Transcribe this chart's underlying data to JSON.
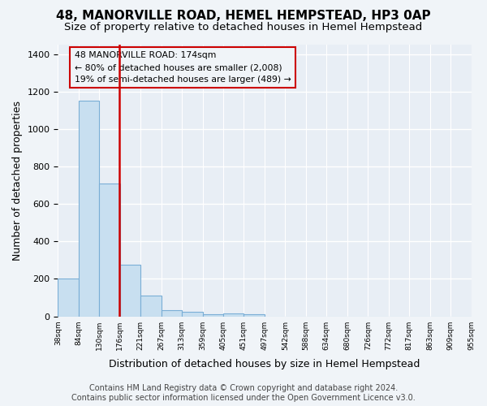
{
  "title": "48, MANORVILLE ROAD, HEMEL HEMPSTEAD, HP3 0AP",
  "subtitle": "Size of property relative to detached houses in Hemel Hempstead",
  "xlabel": "Distribution of detached houses by size in Hemel Hempstead",
  "ylabel": "Number of detached properties",
  "bar_values": [
    200,
    1150,
    710,
    275,
    110,
    35,
    25,
    10,
    15,
    10,
    0,
    0,
    0,
    0,
    0,
    0,
    0,
    0,
    0,
    0
  ],
  "bin_labels": [
    "38sqm",
    "84sqm",
    "130sqm",
    "176sqm",
    "221sqm",
    "267sqm",
    "313sqm",
    "359sqm",
    "405sqm",
    "451sqm",
    "497sqm",
    "542sqm",
    "588sqm",
    "634sqm",
    "680sqm",
    "726sqm",
    "772sqm",
    "817sqm",
    "863sqm",
    "909sqm",
    "955sqm"
  ],
  "bar_color": "#c8dff0",
  "bar_edge_color": "#7aaed6",
  "vline_color": "#cc0000",
  "annotation_title": "48 MANORVILLE ROAD: 174sqm",
  "annotation_line1": "← 80% of detached houses are smaller (2,008)",
  "annotation_line2": "19% of semi-detached houses are larger (489) →",
  "annotation_box_edge": "#cc0000",
  "ylim": [
    0,
    1450
  ],
  "yticks": [
    0,
    200,
    400,
    600,
    800,
    1000,
    1200,
    1400
  ],
  "footer_line1": "Contains HM Land Registry data © Crown copyright and database right 2024.",
  "footer_line2": "Contains public sector information licensed under the Open Government Licence v3.0.",
  "background_color": "#f0f4f8",
  "plot_bg_color": "#e8eef5",
  "grid_color": "#ffffff",
  "title_fontsize": 11,
  "subtitle_fontsize": 9.5,
  "xlabel_fontsize": 9,
  "ylabel_fontsize": 9,
  "footer_fontsize": 7
}
